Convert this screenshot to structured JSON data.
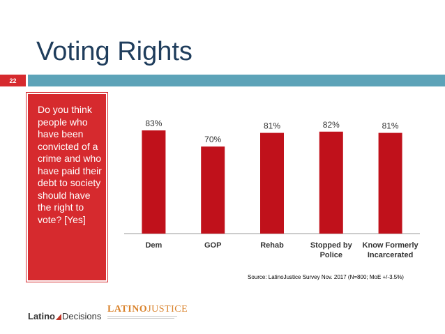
{
  "slide": {
    "title": "Voting Rights",
    "number": "22",
    "question": "Do you think people who have been convicted of a crime and who have paid their debt to society should have the right to vote? [Yes]",
    "source": "Source: LatinoJustice Survey Nov. 2017 (N=800; MoE +/-3.5%)"
  },
  "logos": {
    "latino_decisions_a": "Latino",
    "latino_decisions_b": "Decisions",
    "latino_justice_a": "LATINO",
    "latino_justice_b": "JUSTICE"
  },
  "colors": {
    "bar": "#c0111b",
    "accent_red": "#d62a2e",
    "title_bar": "#5da3b8",
    "title_text": "#1f3d5c"
  },
  "chart_data": {
    "type": "bar",
    "title": "",
    "xlabel": "",
    "ylabel": "",
    "ylim": [
      0,
      100
    ],
    "grid": false,
    "categories": [
      [
        "Dem"
      ],
      [
        "GOP"
      ],
      [
        "Rehab"
      ],
      [
        "Stopped by",
        "Police"
      ],
      [
        "Know Formerly",
        "Incarcerated"
      ]
    ],
    "values": [
      83,
      70,
      81,
      82,
      81
    ],
    "data_labels": [
      "83%",
      "70%",
      "81%",
      "82%",
      "81%"
    ]
  }
}
